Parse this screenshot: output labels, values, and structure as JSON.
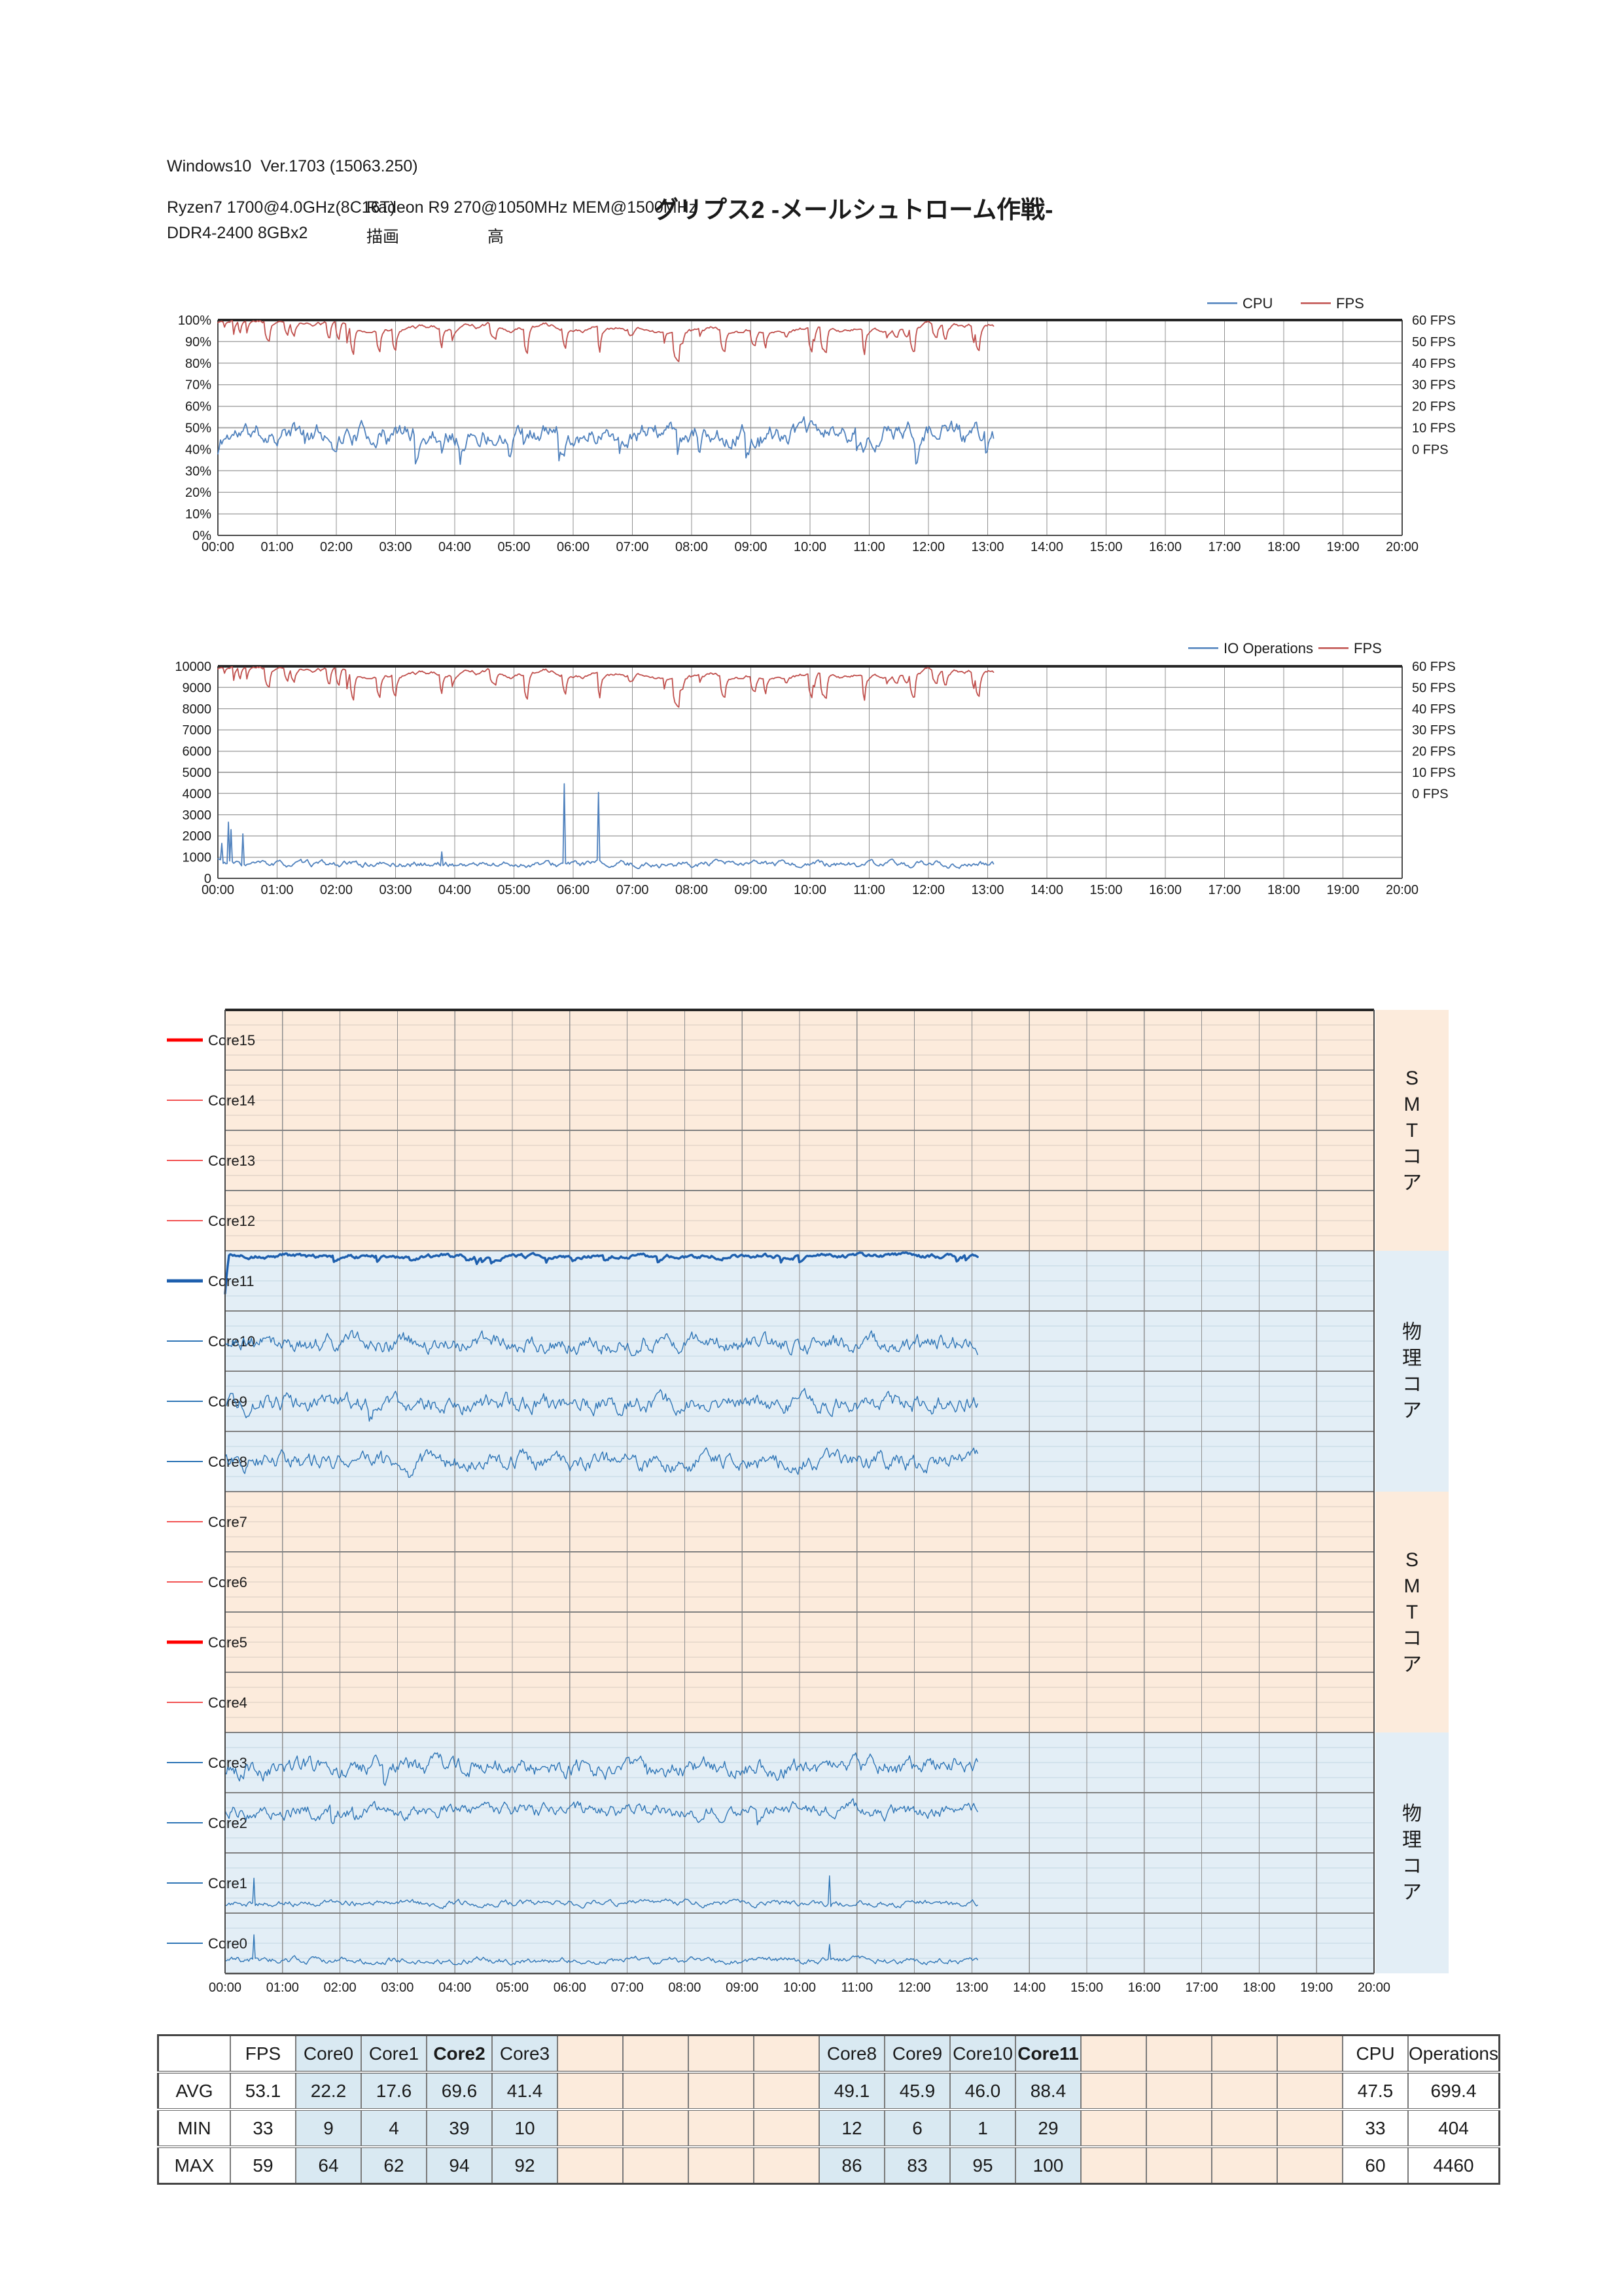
{
  "page": {
    "os_line": "Windows10  Ver.1703 (15063.250)",
    "cpu_line": "Ryzen7 1700@4.0GHz(8C16T)",
    "gpu_line": "Radeon R9 270@1050MHz MEM@1500MHz",
    "ram_line": "DDR4-2400 8GBx2",
    "quality_label": "描画",
    "quality_value": "高",
    "title": "グリプス2 -メールシュトローム作戦-"
  },
  "colors": {
    "series_blue": "#4f81bd",
    "series_red": "#c0504d",
    "core_blue": "#2e75b6",
    "core_blue_bold": "#1d5fae",
    "core_red": "#f25252",
    "core_red_bold": "#ff0000",
    "band_smt": "#fcebdc",
    "band_phys": "#e3eef6",
    "grid_major": "#a8a8a8",
    "grid_vertical": "#8f8f8f",
    "axis_dark": "#4a4a4a",
    "plot_top_border": "#262626"
  },
  "time_labels": [
    "00:00",
    "01:00",
    "02:00",
    "03:00",
    "04:00",
    "05:00",
    "06:00",
    "07:00",
    "08:00",
    "09:00",
    "10:00",
    "11:00",
    "12:00",
    "13:00",
    "14:00",
    "15:00",
    "16:00",
    "17:00",
    "18:00",
    "19:00",
    "20:00"
  ],
  "chart_data": [
    {
      "type": "line",
      "name": "cpu_fps_chart",
      "legend": [
        {
          "label": "CPU",
          "color": "blue"
        },
        {
          "label": "FPS",
          "color": "red"
        }
      ],
      "y_left_labels": [
        "100%",
        "90%",
        "80%",
        "70%",
        "60%",
        "50%",
        "40%",
        "30%",
        "20%",
        "10%",
        "0%"
      ],
      "y_right_labels": [
        "60 FPS",
        "50 FPS",
        "40 FPS",
        "30 FPS",
        "20 FPS",
        "10 FPS",
        "0 FPS"
      ],
      "y_left_range": [
        0,
        100
      ],
      "y_right_range": [
        0,
        60
      ],
      "right_axis_zero_at_left_value": 40,
      "x_hours": 20,
      "data_end_hour": 13.1,
      "grid": true,
      "series": [
        {
          "name": "CPU",
          "axis": "left",
          "color": "blue",
          "stats": {
            "avg": 47.5,
            "min": 33,
            "max": 60
          }
        },
        {
          "name": "FPS",
          "axis": "right",
          "color": "red",
          "stats": {
            "avg": 53.1,
            "min": 33,
            "max": 59
          }
        }
      ]
    },
    {
      "type": "line",
      "name": "io_fps_chart",
      "legend": [
        {
          "label": "IO Operations",
          "color": "blue"
        },
        {
          "label": "FPS",
          "color": "red"
        }
      ],
      "y_left_labels": [
        "10000",
        "9000",
        "8000",
        "7000",
        "6000",
        "5000",
        "4000",
        "3000",
        "2000",
        "1000",
        "0"
      ],
      "y_right_labels": [
        "60 FPS",
        "50 FPS",
        "40 FPS",
        "30 FPS",
        "20 FPS",
        "10 FPS",
        "0 FPS"
      ],
      "y_left_range": [
        0,
        10000
      ],
      "y_right_range": [
        0,
        60
      ],
      "right_axis_zero_at_left_value": 4000,
      "x_hours": 20,
      "data_end_hour": 13.1,
      "grid": true,
      "series": [
        {
          "name": "IO Operations",
          "axis": "left",
          "color": "blue",
          "stats": {
            "avg": 699.4,
            "min": 404,
            "max": 4460
          },
          "spikes": [
            [
              0.06,
              1650
            ],
            [
              0.17,
              2650
            ],
            [
              0.23,
              2300
            ],
            [
              0.42,
              2100
            ],
            [
              3.78,
              1250
            ],
            [
              5.85,
              4460
            ],
            [
              6.42,
              4050
            ]
          ]
        },
        {
          "name": "FPS",
          "axis": "right",
          "color": "red",
          "stats": {
            "avg": 53.1,
            "min": 33,
            "max": 59
          }
        }
      ]
    },
    {
      "type": "line",
      "name": "per_core_chart",
      "x_hours": 20,
      "data_end_hour": 13.1,
      "core_scale_range": [
        0,
        100
      ],
      "band_labels": [
        {
          "text": "SMTコア",
          "type": "smt"
        },
        {
          "text": "物理コア",
          "type": "phys"
        },
        {
          "text": "SMTコア",
          "type": "smt"
        },
        {
          "text": "物理コア",
          "type": "phys"
        }
      ],
      "cores": [
        {
          "name": "Core15",
          "band": "smt",
          "legend_style": "red-bold",
          "active": false
        },
        {
          "name": "Core14",
          "band": "smt",
          "legend_style": "red",
          "active": false
        },
        {
          "name": "Core13",
          "band": "smt",
          "legend_style": "red",
          "active": false
        },
        {
          "name": "Core12",
          "band": "smt",
          "legend_style": "red",
          "active": false
        },
        {
          "name": "Core11",
          "band": "phys",
          "legend_style": "blue-bold",
          "active": true,
          "stats": {
            "avg": 88.4,
            "min": 29,
            "max": 100
          }
        },
        {
          "name": "Core10",
          "band": "phys",
          "legend_style": "blue",
          "active": true,
          "stats": {
            "avg": 46.0,
            "min": 1,
            "max": 95
          }
        },
        {
          "name": "Core9",
          "band": "phys",
          "legend_style": "blue",
          "active": true,
          "stats": {
            "avg": 45.9,
            "min": 6,
            "max": 83
          }
        },
        {
          "name": "Core8",
          "band": "phys",
          "legend_style": "blue",
          "active": true,
          "stats": {
            "avg": 49.1,
            "min": 12,
            "max": 86
          }
        },
        {
          "name": "Core7",
          "band": "smt",
          "legend_style": "red",
          "active": false
        },
        {
          "name": "Core6",
          "band": "smt",
          "legend_style": "red",
          "active": false
        },
        {
          "name": "Core5",
          "band": "smt",
          "legend_style": "red-bold",
          "active": false
        },
        {
          "name": "Core4",
          "band": "smt",
          "legend_style": "red",
          "active": false
        },
        {
          "name": "Core3",
          "band": "phys",
          "legend_style": "blue",
          "active": true,
          "stats": {
            "avg": 41.4,
            "min": 10,
            "max": 92
          }
        },
        {
          "name": "Core2",
          "band": "phys",
          "legend_style": "blue",
          "active": true,
          "stats": {
            "avg": 69.6,
            "min": 39,
            "max": 94
          }
        },
        {
          "name": "Core1",
          "band": "phys",
          "legend_style": "blue",
          "active": true,
          "stats": {
            "avg": 17.6,
            "min": 4,
            "max": 62
          },
          "spikes": [
            [
              0.5,
              58
            ],
            [
              10.53,
              62
            ]
          ]
        },
        {
          "name": "Core0",
          "band": "phys",
          "legend_style": "blue",
          "active": true,
          "stats": {
            "avg": 22.2,
            "min": 9,
            "max": 64
          },
          "spikes": [
            [
              0.5,
              64
            ],
            [
              10.53,
              48
            ]
          ]
        }
      ]
    }
  ],
  "table": {
    "corner_label": "",
    "row_labels": [
      "AVG",
      "MIN",
      "MAX"
    ],
    "columns": [
      {
        "label": "FPS",
        "bg": "white",
        "values": [
          "53.1",
          "33",
          "59"
        ]
      },
      {
        "label": "Core0",
        "bg": "blue",
        "values": [
          "22.2",
          "9",
          "64"
        ]
      },
      {
        "label": "Core1",
        "bg": "blue",
        "values": [
          "17.6",
          "4",
          "62"
        ]
      },
      {
        "label": "Core2",
        "bg": "blue",
        "bold": true,
        "values": [
          "69.6",
          "39",
          "94"
        ]
      },
      {
        "label": "Core3",
        "bg": "blue",
        "values": [
          "41.4",
          "10",
          "92"
        ]
      },
      {
        "label": "",
        "bg": "peach",
        "values": [
          "",
          "",
          ""
        ]
      },
      {
        "label": "",
        "bg": "peach",
        "values": [
          "",
          "",
          ""
        ]
      },
      {
        "label": "",
        "bg": "peach",
        "values": [
          "",
          "",
          ""
        ]
      },
      {
        "label": "",
        "bg": "peach",
        "values": [
          "",
          "",
          ""
        ]
      },
      {
        "label": "Core8",
        "bg": "blue",
        "values": [
          "49.1",
          "12",
          "86"
        ]
      },
      {
        "label": "Core9",
        "bg": "blue",
        "values": [
          "45.9",
          "6",
          "83"
        ]
      },
      {
        "label": "Core10",
        "bg": "blue",
        "values": [
          "46.0",
          "1",
          "95"
        ]
      },
      {
        "label": "Core11",
        "bg": "blue",
        "bold": true,
        "values": [
          "88.4",
          "29",
          "100"
        ]
      },
      {
        "label": "",
        "bg": "peach",
        "values": [
          "",
          "",
          ""
        ]
      },
      {
        "label": "",
        "bg": "peach",
        "values": [
          "",
          "",
          ""
        ]
      },
      {
        "label": "",
        "bg": "peach",
        "values": [
          "",
          "",
          ""
        ]
      },
      {
        "label": "",
        "bg": "peach",
        "values": [
          "",
          "",
          ""
        ]
      },
      {
        "label": "CPU",
        "bg": "white",
        "values": [
          "47.5",
          "33",
          "60"
        ]
      },
      {
        "label": "Operations",
        "bg": "white",
        "clip": true,
        "values": [
          "699.4",
          "404",
          "4460"
        ]
      }
    ]
  }
}
